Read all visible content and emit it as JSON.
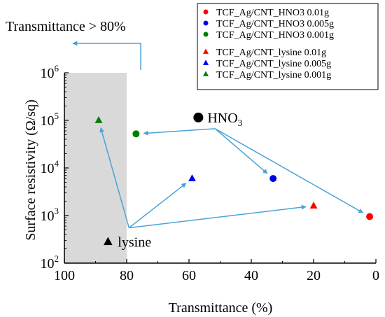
{
  "chart_data": {
    "type": "scatter",
    "xlabel": "Transmittance (%)",
    "ylabel": "Surface resistivity (Ω/sq)",
    "xlim": [
      100,
      0
    ],
    "ylim_log10": [
      2,
      6
    ],
    "y_scale": "log",
    "x_ticks": [
      "100",
      "80",
      "60",
      "40",
      "20",
      "0"
    ],
    "x_tick_values": [
      100,
      80,
      60,
      40,
      20,
      0
    ],
    "y_tick_exponents": [
      2,
      3,
      4,
      5,
      6
    ],
    "y_tick_base": "10",
    "shaded_region": {
      "x_from": 100,
      "x_to": 80,
      "color": "#d9d9d9"
    },
    "threshold_label": "Transmittance > 80%",
    "legend_position": "top-right",
    "series": [
      {
        "name": "TCF_Ag/CNT_HNO3 0.01g",
        "marker": "circle",
        "color": "#ff0000",
        "x": 2,
        "y": 950
      },
      {
        "name": "TCF_Ag/CNT_HNO3 0.005g",
        "marker": "circle",
        "color": "#0000ee",
        "x": 33,
        "y": 6000
      },
      {
        "name": "TCF_Ag/CNT_HNO3 0.001g",
        "marker": "circle",
        "color": "#008000",
        "x": 77,
        "y": 52000
      },
      {
        "name": "TCF_Ag/CNT_lysine 0.01g",
        "marker": "triangle",
        "color": "#ff0000",
        "x": 20,
        "y": 1600
      },
      {
        "name": "TCF_Ag/CNT_lysine 0.005g",
        "marker": "triangle",
        "color": "#0000ee",
        "x": 59,
        "y": 6000
      },
      {
        "name": "TCF_Ag/CNT_lysine 0.001g",
        "marker": "triangle",
        "color": "#008000",
        "x": 89,
        "y": 100000
      }
    ],
    "annotations": {
      "hno3": {
        "label": "HNO",
        "sub": "3",
        "x": 57,
        "y": 115000
      },
      "lysine": {
        "label": "lysine",
        "x": 86,
        "y": 280
      }
    },
    "arrow_color": "#4aa3d6"
  }
}
